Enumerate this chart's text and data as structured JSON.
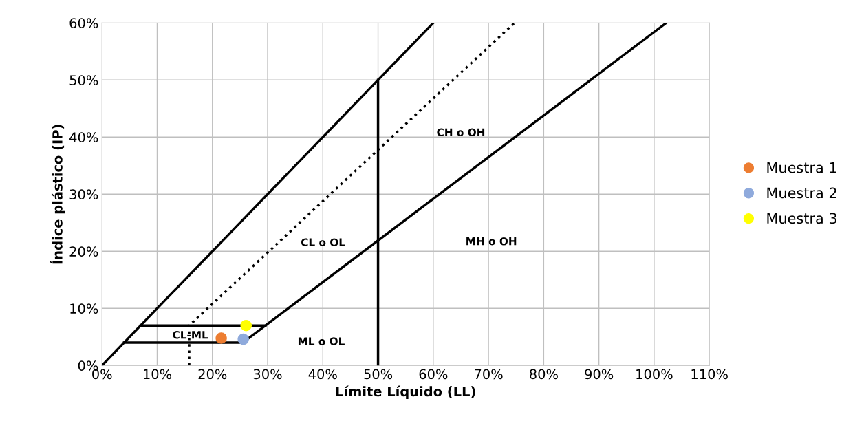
{
  "chart_data": {
    "type": "scatter",
    "xlabel": "Límite Líquido (LL)",
    "ylabel": "Índice plástico (IP)",
    "xlim": [
      0,
      110
    ],
    "ylim": [
      0,
      60
    ],
    "xticks": [
      {
        "value": 0,
        "label": "0%"
      },
      {
        "value": 10,
        "label": "10%"
      },
      {
        "value": 20,
        "label": "20%"
      },
      {
        "value": 30,
        "label": "30%"
      },
      {
        "value": 40,
        "label": "40%"
      },
      {
        "value": 50,
        "label": "50%"
      },
      {
        "value": 60,
        "label": "60%"
      },
      {
        "value": 70,
        "label": "70%"
      },
      {
        "value": 80,
        "label": "80%"
      },
      {
        "value": 90,
        "label": "90%"
      },
      {
        "value": 100,
        "label": "100%"
      },
      {
        "value": 110,
        "label": "110%"
      }
    ],
    "yticks": [
      {
        "value": 0,
        "label": "0%"
      },
      {
        "value": 10,
        "label": "10%"
      },
      {
        "value": 20,
        "label": "20%"
      },
      {
        "value": 30,
        "label": "30%"
      },
      {
        "value": 40,
        "label": "40%"
      },
      {
        "value": 50,
        "label": "50%"
      },
      {
        "value": 60,
        "label": "60%"
      }
    ],
    "grid": true,
    "legend": "right",
    "series": [
      {
        "type": "line",
        "color": "#000000",
        "line_style": "solid",
        "x": [
          0,
          60
        ],
        "values": [
          0,
          60
        ]
      },
      {
        "type": "line",
        "color": "#000000",
        "line_style": "solid",
        "x": [
          25.5,
          102.2
        ],
        "values": [
          4,
          60
        ]
      },
      {
        "type": "line",
        "color": "#000000",
        "line_style": "dotted",
        "x": [
          15.8,
          15.8,
          74.7
        ],
        "values": [
          0,
          7,
          60
        ]
      },
      {
        "type": "line",
        "color": "#000000",
        "line_style": "solid",
        "x": [
          50,
          50
        ],
        "values": [
          0,
          50
        ]
      },
      {
        "type": "line",
        "color": "#000000",
        "line_style": "solid",
        "x": [
          7,
          29.6
        ],
        "values": [
          7,
          7
        ]
      },
      {
        "type": "line",
        "color": "#000000",
        "line_style": "solid",
        "x": [
          4,
          25.5
        ],
        "values": [
          4,
          4
        ]
      },
      {
        "name": "Muestra 1",
        "marker": "circle",
        "color": "#ed7d31",
        "x": [
          21.6
        ],
        "values": [
          4.8
        ]
      },
      {
        "name": "Muestra 2",
        "marker": "circle",
        "color": "#8faadc",
        "x": [
          25.6
        ],
        "values": [
          4.6
        ]
      },
      {
        "name": "Muestra 3",
        "marker": "circle",
        "color": "#ffff00",
        "x": [
          26.1
        ],
        "values": [
          7.0
        ]
      }
    ],
    "annotations": [
      "CH o OH",
      "CL o OL",
      "MH o OH",
      "ML o OL",
      {
        "text": "CL-ML",
        "x": 16,
        "y": 5.2
      }
    ]
  }
}
